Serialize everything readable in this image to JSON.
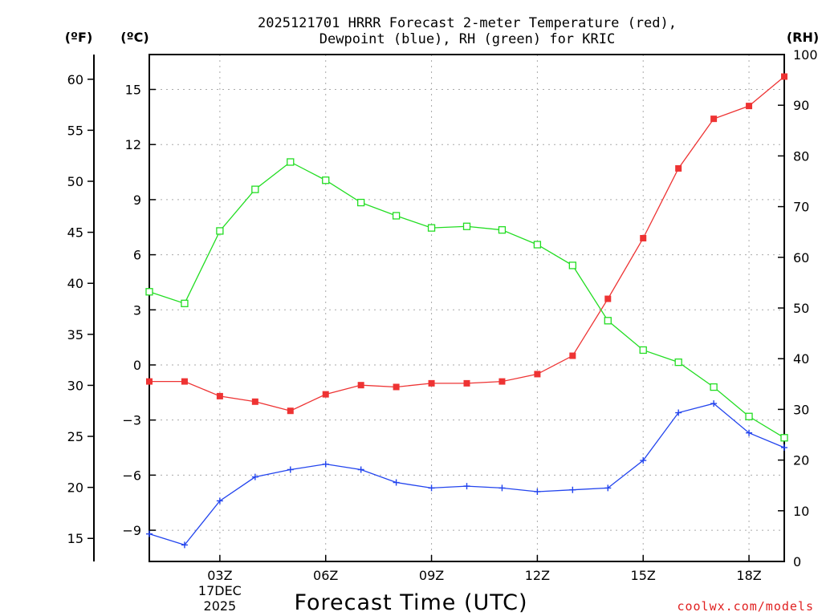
{
  "chart_data": {
    "type": "line",
    "title_line1": "2025121701 HRRR Forecast 2-meter Temperature (red),",
    "title_line2": "Dewpoint (blue), RH (green) for KRIC",
    "xlabel": "Forecast Time (UTC)",
    "credit": "coolwx.com/models",
    "units": {
      "left_outer": "(ºF)",
      "left_inner": "(ºC)",
      "right": "(RH)"
    },
    "x_hours": [
      1,
      2,
      3,
      4,
      5,
      6,
      7,
      8,
      9,
      10,
      11,
      12,
      13,
      14,
      15,
      16,
      17,
      18,
      19
    ],
    "xlim": [
      1,
      19
    ],
    "x_ticks": [
      {
        "hour": 3,
        "label": "03Z"
      },
      {
        "hour": 6,
        "label": "06Z"
      },
      {
        "hour": 9,
        "label": "09Z"
      },
      {
        "hour": 12,
        "label": "12Z"
      },
      {
        "hour": 15,
        "label": "15Z"
      },
      {
        "hour": 18,
        "label": "18Z"
      }
    ],
    "date_label": [
      "17DEC",
      "2025"
    ],
    "celsius_axis": {
      "lim": [
        -10.7,
        16.9
      ],
      "ticks": [
        15,
        12,
        9,
        6,
        3,
        0,
        -3,
        -6,
        -9
      ],
      "labels": [
        "15",
        "12",
        "9",
        "6",
        "3",
        "0",
        "−3",
        "−6",
        "−9"
      ]
    },
    "fahrenheit_axis": {
      "ticks": [
        60,
        55,
        50,
        45,
        40,
        35,
        30,
        25,
        20,
        15
      ],
      "labels": [
        "60",
        "55",
        "50",
        "45",
        "40",
        "35",
        "30",
        "25",
        "20",
        "15"
      ]
    },
    "rh_axis": {
      "lim": [
        0,
        100
      ],
      "ticks": [
        0,
        10,
        20,
        30,
        40,
        50,
        60,
        70,
        80,
        90,
        100
      ],
      "labels": [
        "0",
        "10",
        "20",
        "30",
        "40",
        "50",
        "60",
        "70",
        "80",
        "90",
        "100"
      ]
    },
    "grid": true,
    "series": [
      {
        "key": "temperature",
        "units": "C",
        "color": "#ee3333",
        "marker": "filled-square",
        "values": [
          -0.9,
          -0.9,
          -1.7,
          -2.0,
          -2.5,
          -1.6,
          -1.1,
          -1.2,
          -1.0,
          -1.0,
          -0.9,
          -0.5,
          0.5,
          3.6,
          6.9,
          10.7,
          13.4,
          14.1,
          15.7
        ]
      },
      {
        "key": "dewpoint",
        "units": "C",
        "color": "#2244ee",
        "marker": "plus",
        "values": [
          -9.2,
          -9.8,
          -7.4,
          -6.1,
          -5.7,
          -5.4,
          -5.7,
          -6.4,
          -6.7,
          -6.6,
          -6.7,
          -6.9,
          -6.8,
          -6.7,
          -5.2,
          -2.6,
          -2.1,
          -3.7,
          -4.5
        ]
      },
      {
        "key": "rh",
        "units": "%",
        "color": "#22dd22",
        "marker": "open-square",
        "values": [
          53.2,
          50.9,
          65.2,
          73.4,
          78.8,
          75.2,
          70.8,
          68.2,
          65.8,
          66.1,
          65.4,
          62.5,
          58.4,
          47.5,
          41.7,
          39.3,
          34.4,
          28.6,
          24.4
        ]
      }
    ]
  }
}
